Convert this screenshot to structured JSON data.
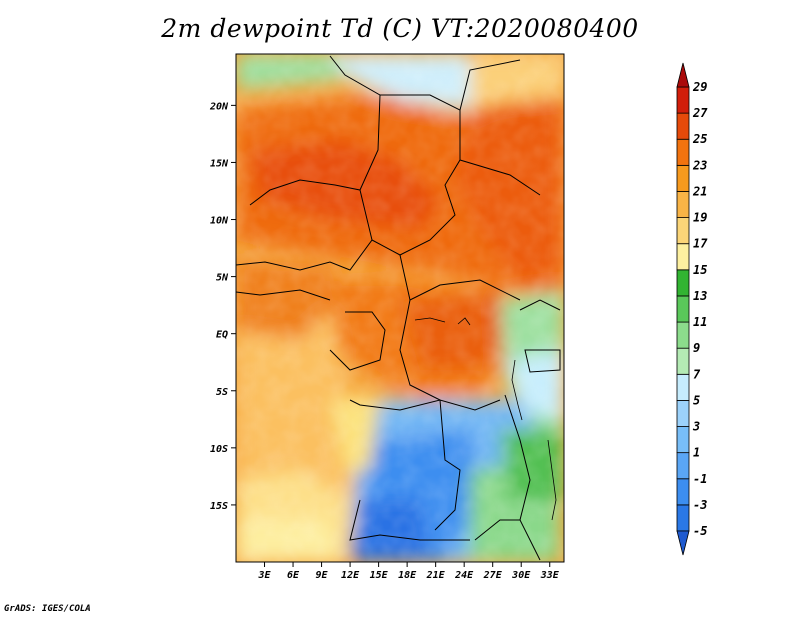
{
  "title": "2m dewpoint Td (C) VT:2020080400",
  "credit": "GrADS: IGES/COLA",
  "map": {
    "lon_range": [
      0,
      34.5
    ],
    "lat_range": [
      -20,
      24.5
    ],
    "x_ticks": [
      {
        "value": 3,
        "label": "3E"
      },
      {
        "value": 6,
        "label": "6E"
      },
      {
        "value": 9,
        "label": "9E"
      },
      {
        "value": 12,
        "label": "12E"
      },
      {
        "value": 15,
        "label": "15E"
      },
      {
        "value": 18,
        "label": "18E"
      },
      {
        "value": 21,
        "label": "21E"
      },
      {
        "value": 24,
        "label": "24E"
      },
      {
        "value": 27,
        "label": "27E"
      },
      {
        "value": 30,
        "label": "30E"
      },
      {
        "value": 33,
        "label": "33E"
      }
    ],
    "y_ticks": [
      {
        "value": 20,
        "label": "20N"
      },
      {
        "value": 15,
        "label": "15N"
      },
      {
        "value": 10,
        "label": "10N"
      },
      {
        "value": 5,
        "label": "5N"
      },
      {
        "value": 0,
        "label": "EQ"
      },
      {
        "value": -5,
        "label": "5S"
      },
      {
        "value": -10,
        "label": "10S"
      },
      {
        "value": -15,
        "label": "15S"
      }
    ]
  },
  "colorbar": {
    "levels": [
      "-5",
      "-3",
      "-1",
      "1",
      "3",
      "5",
      "7",
      "9",
      "11",
      "13",
      "15",
      "17",
      "19",
      "21",
      "23",
      "25",
      "27",
      "29"
    ],
    "colors": [
      "#1e64d8",
      "#2a78e6",
      "#3c8ef0",
      "#5aa6f5",
      "#78bef8",
      "#9cd2fb",
      "#c6ecfd",
      "#b4eab4",
      "#8cdc8c",
      "#5ac85a",
      "#32b432",
      "#fdf0a0",
      "#fbd578",
      "#f9b446",
      "#f79a1e",
      "#f2730f",
      "#e64a0a",
      "#d21e0a",
      "#b40a0a"
    ],
    "low_end_color": "#1e5ad0",
    "high_end_color": "#aa0a0a"
  }
}
